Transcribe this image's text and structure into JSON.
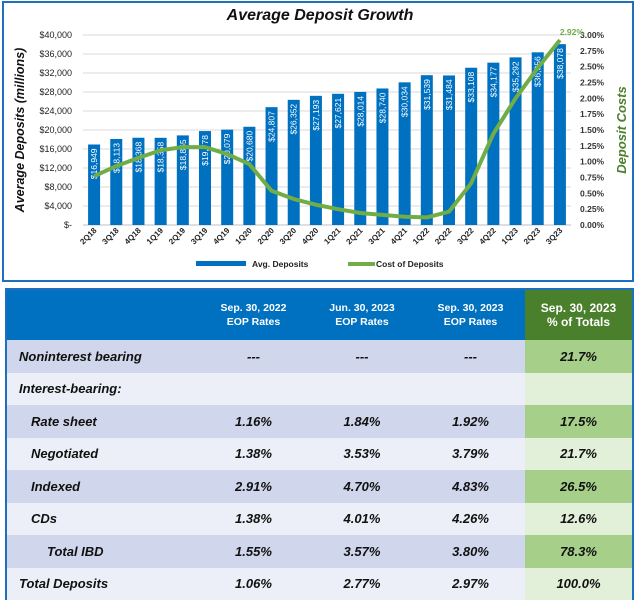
{
  "chart_data": {
    "type": "bar+line",
    "title": "Average Deposit Growth",
    "ylabel": "Average Deposits (millions)",
    "y2label": "Deposit Costs",
    "ylim": [
      0,
      40000
    ],
    "y2lim": [
      0,
      3.0
    ],
    "yticks": [
      "$-",
      "$4,000",
      "$8,000",
      "$12,000",
      "$16,000",
      "$20,000",
      "$24,000",
      "$28,000",
      "$32,000",
      "$36,000",
      "$40,000"
    ],
    "y2ticks": [
      "0.00%",
      "0.25%",
      "0.50%",
      "0.75%",
      "1.00%",
      "1.25%",
      "1.50%",
      "1.75%",
      "2.00%",
      "2.25%",
      "2.50%",
      "2.75%",
      "3.00%"
    ],
    "grid": true,
    "legend": "bottom",
    "categories": [
      "2Q18",
      "3Q18",
      "4Q18",
      "1Q19",
      "2Q19",
      "3Q19",
      "4Q19",
      "1Q20",
      "2Q20",
      "3Q20",
      "4Q20",
      "1Q21",
      "2Q21",
      "3Q21",
      "4Q21",
      "1Q22",
      "2Q22",
      "3Q22",
      "4Q22",
      "1Q23",
      "2Q23",
      "3Q23"
    ],
    "series": [
      {
        "name": "Avg. Deposits",
        "type": "bar",
        "color": "#0070c0",
        "values": [
          16949,
          18113,
          18368,
          18358,
          18865,
          19778,
          20079,
          20680,
          24807,
          26352,
          27193,
          27621,
          28014,
          28740,
          30034,
          31539,
          31484,
          33108,
          34177,
          35292,
          36356,
          38078
        ],
        "labels": [
          "$16,949",
          "$18,113",
          "$18,368",
          "$18,358",
          "$18,865",
          "$19,778",
          "$20,079",
          "$20,680",
          "$24,807",
          "$26,352",
          "$27,193",
          "$27,621",
          "$28,014",
          "$28,740",
          "$30,034",
          "$31,539",
          "$31,484",
          "$33,108",
          "$34,177",
          "$35,292",
          "$36,356",
          "$38,078"
        ]
      },
      {
        "name": "Cost of Deposits",
        "type": "line",
        "color": "#70ad47",
        "values": [
          0.77,
          0.93,
          1.06,
          1.18,
          1.23,
          1.23,
          1.12,
          0.96,
          0.54,
          0.41,
          0.32,
          0.25,
          0.19,
          0.16,
          0.13,
          0.12,
          0.21,
          0.66,
          1.44,
          2.0,
          2.48,
          2.92
        ],
        "end_label": "2.92%"
      }
    ]
  },
  "table": {
    "headers": [
      [
        "",
        ""
      ],
      [
        "Sep. 30, 2022",
        "EOP Rates"
      ],
      [
        "Jun. 30, 2023",
        "EOP Rates"
      ],
      [
        "Sep. 30, 2023",
        "EOP Rates"
      ],
      [
        "Sep. 30, 2023",
        "% of Totals"
      ]
    ],
    "rows": [
      [
        "Noninterest bearing",
        "---",
        "---",
        "---",
        "21.7%"
      ],
      [
        "Interest-bearing:",
        "",
        "",
        "",
        ""
      ],
      [
        "Rate sheet",
        "1.16%",
        "1.84%",
        "1.92%",
        "17.5%"
      ],
      [
        "Negotiated",
        "1.38%",
        "3.53%",
        "3.79%",
        "21.7%"
      ],
      [
        "Indexed",
        "2.91%",
        "4.70%",
        "4.83%",
        "26.5%"
      ],
      [
        "CDs",
        "1.38%",
        "4.01%",
        "4.26%",
        "12.6%"
      ],
      [
        "Total IBD",
        "1.55%",
        "3.57%",
        "3.80%",
        "78.3%"
      ],
      [
        "Total Deposits",
        "1.06%",
        "2.77%",
        "2.97%",
        "100.0%"
      ]
    ]
  }
}
